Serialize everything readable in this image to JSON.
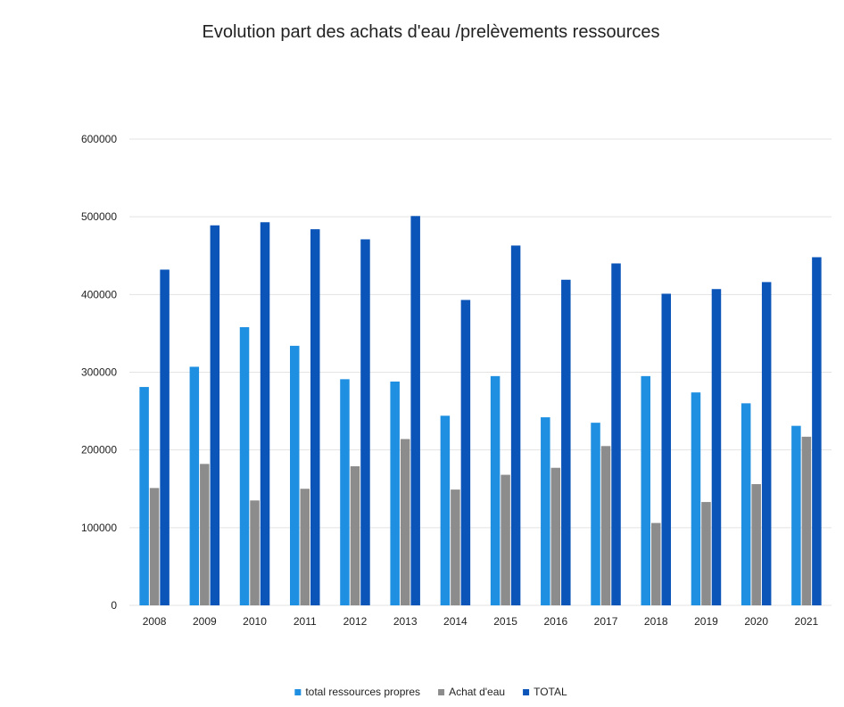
{
  "chart_data": {
    "type": "bar",
    "title": "Evolution part des achats d'eau /prelèvements ressources",
    "xlabel": "",
    "ylabel": "",
    "ylim": [
      0,
      600000
    ],
    "yticks": [
      "0",
      "100000",
      "200000",
      "300000",
      "400000",
      "500000",
      "600000"
    ],
    "categories": [
      "2008",
      "2009",
      "2010",
      "2011",
      "2012",
      "2013",
      "2014",
      "2015",
      "2016",
      "2017",
      "2018",
      "2019",
      "2020",
      "2021"
    ],
    "series": [
      {
        "name": "total ressources propres",
        "color": "#1e8fe1",
        "values": [
          281000,
          307000,
          358000,
          334000,
          291000,
          288000,
          244000,
          295000,
          242000,
          235000,
          295000,
          274000,
          260000,
          231000
        ]
      },
      {
        "name": "Achat d'eau",
        "color": "#8c8c8c",
        "values": [
          151000,
          182000,
          135000,
          150000,
          179000,
          214000,
          149000,
          168000,
          177000,
          205000,
          106000,
          133000,
          156000,
          217000
        ]
      },
      {
        "name": "TOTAL",
        "color": "#0b55b8",
        "values": [
          432000,
          489000,
          493000,
          484000,
          471000,
          501000,
          393000,
          463000,
          419000,
          440000,
          401000,
          407000,
          416000,
          448000
        ]
      }
    ],
    "grid": true,
    "legend_position": "bottom"
  }
}
